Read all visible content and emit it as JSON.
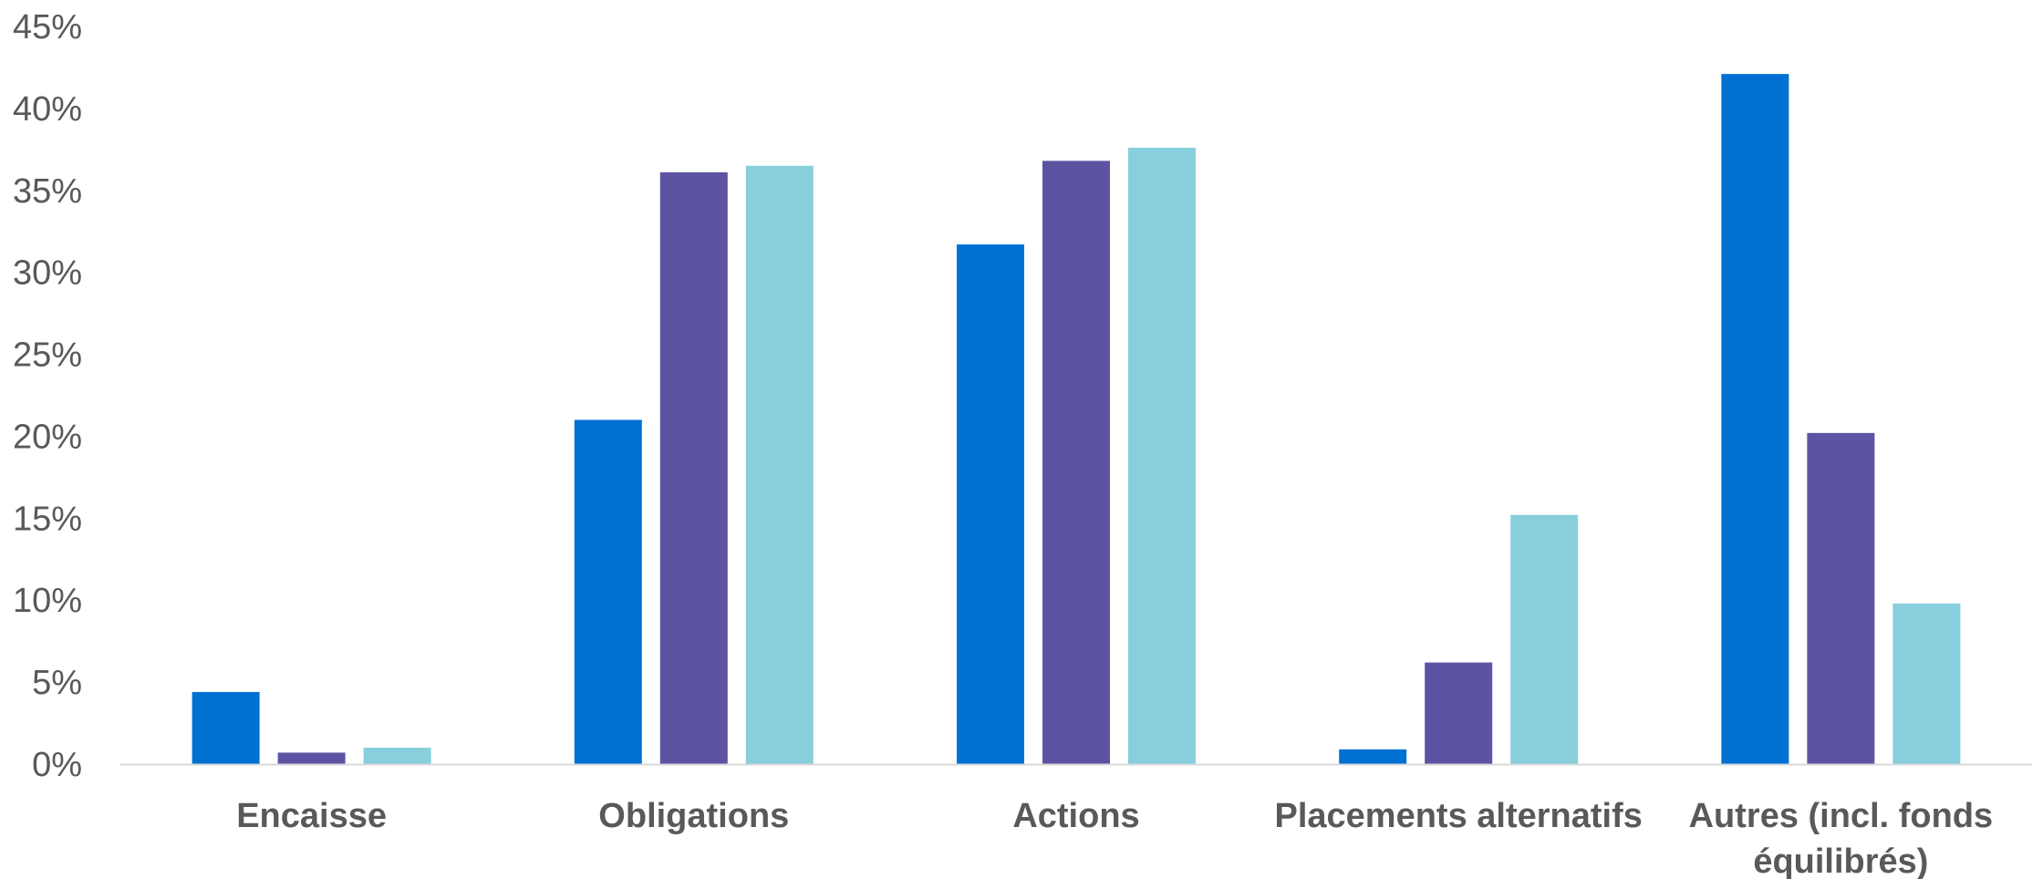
{
  "chart_data": {
    "type": "bar",
    "title": "",
    "xlabel": "",
    "ylabel": "",
    "ylim": [
      0,
      45
    ],
    "yticks": [
      0,
      5,
      10,
      15,
      20,
      25,
      30,
      35,
      40,
      45
    ],
    "ytick_labels": [
      "0%",
      "5%",
      "10%",
      "15%",
      "20%",
      "25%",
      "30%",
      "35%",
      "40%",
      "45%"
    ],
    "categories": [
      [
        "Encaisse"
      ],
      [
        "Obligations"
      ],
      [
        "Actions"
      ],
      [
        "Placements alternatifs"
      ],
      [
        "Autres (incl. fonds",
        "équilibrés)"
      ]
    ],
    "series": [
      {
        "color": "#0071D2",
        "values": [
          4.4,
          21.0,
          31.7,
          0.9,
          42.1
        ]
      },
      {
        "color": "#5C54A3",
        "values": [
          0.7,
          36.1,
          36.8,
          6.2,
          20.2
        ]
      },
      {
        "color": "#88CEDC",
        "values": [
          1.0,
          36.5,
          37.6,
          15.2,
          9.8
        ]
      }
    ],
    "grid": false,
    "legend": "none"
  }
}
